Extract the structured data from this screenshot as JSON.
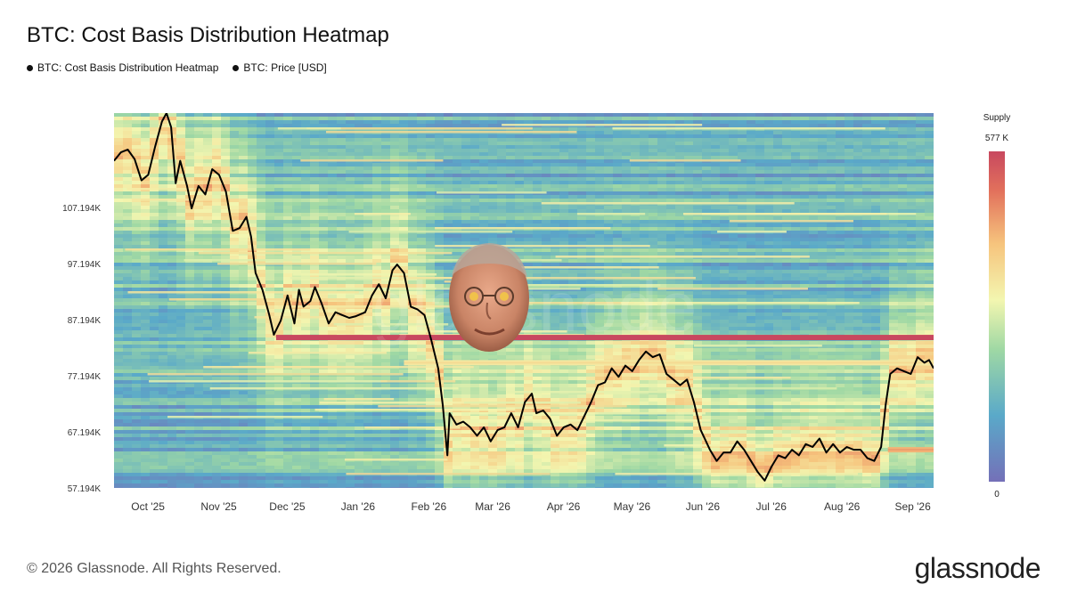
{
  "title": "BTC: Cost Basis Distribution Heatmap",
  "legend": [
    {
      "label": "BTC: Cost Basis Distribution Heatmap"
    },
    {
      "label": "BTC: Price [USD]"
    }
  ],
  "footer": {
    "copyright": "© 2026 Glassnode. All Rights Reserved.",
    "logo": "glassnode"
  },
  "colorbar": {
    "title": "Supply",
    "max_label": "577 K",
    "min_label": "0",
    "colors": [
      "#7470b8",
      "#5aa9c9",
      "#9fd8a4",
      "#f3f6b0",
      "#f6c47d",
      "#e2715c",
      "#c8485f"
    ]
  },
  "watermark": "glassnode",
  "chart_data": {
    "type": "heatmap",
    "title": "BTC: Cost Basis Distribution Heatmap",
    "x_ticks": [
      "Oct '25",
      "Nov '25",
      "Dec '25",
      "Jan '26",
      "Feb '26",
      "Mar '26",
      "Apr '26",
      "May '26",
      "Jun '26",
      "Jul '26",
      "Aug '26",
      "Sep '26"
    ],
    "y_ticks": [
      "107.194K",
      "97.194K",
      "87.194K",
      "77.194K",
      "67.194K",
      "57.194K"
    ],
    "y_tick_values": [
      107194,
      97194,
      87194,
      77194,
      67194,
      57194
    ],
    "ylim": [
      57194,
      124000
    ],
    "xlim": [
      "2025-09-13",
      "2026-09-07"
    ],
    "hot_bands": [
      {
        "price": 84000,
        "start": "2025-11-23",
        "end": "2026-09-07",
        "intensity": 1.0
      },
      {
        "price": 79500,
        "start": "2026-01-18",
        "end": "2026-09-07",
        "intensity": 0.55
      },
      {
        "price": 64000,
        "start": "2026-08-18",
        "end": "2026-09-07",
        "intensity": 0.7
      }
    ],
    "series": [
      {
        "name": "BTC: Price [USD]",
        "points": [
          [
            "2025-09-13",
            115500
          ],
          [
            "2025-09-16",
            117000
          ],
          [
            "2025-09-19",
            117500
          ],
          [
            "2025-09-22",
            115800
          ],
          [
            "2025-09-25",
            112000
          ],
          [
            "2025-09-28",
            113000
          ],
          [
            "2025-10-01",
            118000
          ],
          [
            "2025-10-04",
            122500
          ],
          [
            "2025-10-06",
            124000
          ],
          [
            "2025-10-08",
            121500
          ],
          [
            "2025-10-10",
            111500
          ],
          [
            "2025-10-12",
            115500
          ],
          [
            "2025-10-15",
            111000
          ],
          [
            "2025-10-17",
            107000
          ],
          [
            "2025-10-20",
            111000
          ],
          [
            "2025-10-23",
            109500
          ],
          [
            "2025-10-26",
            114000
          ],
          [
            "2025-10-29",
            113000
          ],
          [
            "2025-11-01",
            110000
          ],
          [
            "2025-11-04",
            103000
          ],
          [
            "2025-11-07",
            103500
          ],
          [
            "2025-11-10",
            105500
          ],
          [
            "2025-11-12",
            102000
          ],
          [
            "2025-11-14",
            95500
          ],
          [
            "2025-11-17",
            92500
          ],
          [
            "2025-11-20",
            88000
          ],
          [
            "2025-11-22",
            84500
          ],
          [
            "2025-11-25",
            87000
          ],
          [
            "2025-11-28",
            91500
          ],
          [
            "2025-12-01",
            86500
          ],
          [
            "2025-12-03",
            92500
          ],
          [
            "2025-12-05",
            89500
          ],
          [
            "2025-12-08",
            90500
          ],
          [
            "2025-12-10",
            93000
          ],
          [
            "2025-12-13",
            90000
          ],
          [
            "2025-12-16",
            86500
          ],
          [
            "2025-12-19",
            88500
          ],
          [
            "2025-12-22",
            88000
          ],
          [
            "2025-12-25",
            87500
          ],
          [
            "2025-12-28",
            87800
          ],
          [
            "2026-01-01",
            88500
          ],
          [
            "2026-01-04",
            91500
          ],
          [
            "2026-01-07",
            93500
          ],
          [
            "2026-01-10",
            91000
          ],
          [
            "2026-01-13",
            96000
          ],
          [
            "2026-01-15",
            97000
          ],
          [
            "2026-01-18",
            95500
          ],
          [
            "2026-01-21",
            89500
          ],
          [
            "2026-01-24",
            89000
          ],
          [
            "2026-01-27",
            88000
          ],
          [
            "2026-01-30",
            83500
          ],
          [
            "2026-02-02",
            78500
          ],
          [
            "2026-02-04",
            72000
          ],
          [
            "2026-02-06",
            63000
          ],
          [
            "2026-02-07",
            70500
          ],
          [
            "2026-02-10",
            68500
          ],
          [
            "2026-02-13",
            69000
          ],
          [
            "2026-02-16",
            68000
          ],
          [
            "2026-02-19",
            66500
          ],
          [
            "2026-02-22",
            68000
          ],
          [
            "2026-02-25",
            65500
          ],
          [
            "2026-02-28",
            67500
          ],
          [
            "2026-03-03",
            68000
          ],
          [
            "2026-03-06",
            70500
          ],
          [
            "2026-03-09",
            68000
          ],
          [
            "2026-03-12",
            72500
          ],
          [
            "2026-03-15",
            74000
          ],
          [
            "2026-03-17",
            70500
          ],
          [
            "2026-03-20",
            71000
          ],
          [
            "2026-03-23",
            69500
          ],
          [
            "2026-03-26",
            66500
          ],
          [
            "2026-03-29",
            68000
          ],
          [
            "2026-04-01",
            68500
          ],
          [
            "2026-04-04",
            67500
          ],
          [
            "2026-04-07",
            70000
          ],
          [
            "2026-04-10",
            72500
          ],
          [
            "2026-04-13",
            75500
          ],
          [
            "2026-04-16",
            76000
          ],
          [
            "2026-04-19",
            78500
          ],
          [
            "2026-04-22",
            77000
          ],
          [
            "2026-04-25",
            79000
          ],
          [
            "2026-04-28",
            78000
          ],
          [
            "2026-05-01",
            80000
          ],
          [
            "2026-05-04",
            81500
          ],
          [
            "2026-05-07",
            80500
          ],
          [
            "2026-05-10",
            81000
          ],
          [
            "2026-05-13",
            77500
          ],
          [
            "2026-05-16",
            76500
          ],
          [
            "2026-05-19",
            75500
          ],
          [
            "2026-05-22",
            76500
          ],
          [
            "2026-05-25",
            72500
          ],
          [
            "2026-05-28",
            67500
          ],
          [
            "2026-06-01",
            64000
          ],
          [
            "2026-06-04",
            62000
          ],
          [
            "2026-06-07",
            63500
          ],
          [
            "2026-06-10",
            63500
          ],
          [
            "2026-06-13",
            65500
          ],
          [
            "2026-06-16",
            64000
          ],
          [
            "2026-06-19",
            62000
          ],
          [
            "2026-06-22",
            60000
          ],
          [
            "2026-06-25",
            58500
          ],
          [
            "2026-06-28",
            61000
          ],
          [
            "2026-07-01",
            63000
          ],
          [
            "2026-07-04",
            62500
          ],
          [
            "2026-07-07",
            64000
          ],
          [
            "2026-07-10",
            63000
          ],
          [
            "2026-07-13",
            65000
          ],
          [
            "2026-07-16",
            64500
          ],
          [
            "2026-07-19",
            66000
          ],
          [
            "2026-07-22",
            63500
          ],
          [
            "2026-07-25",
            65000
          ],
          [
            "2026-07-28",
            63500
          ],
          [
            "2026-07-31",
            64500
          ],
          [
            "2026-08-03",
            64000
          ],
          [
            "2026-08-06",
            64000
          ],
          [
            "2026-08-09",
            62500
          ],
          [
            "2026-08-12",
            62000
          ],
          [
            "2026-08-15",
            64500
          ],
          [
            "2026-08-17",
            72000
          ],
          [
            "2026-08-19",
            77500
          ],
          [
            "2026-08-22",
            78500
          ],
          [
            "2026-08-25",
            78000
          ],
          [
            "2026-08-28",
            77500
          ],
          [
            "2026-08-31",
            80500
          ],
          [
            "2026-09-03",
            79500
          ],
          [
            "2026-09-05",
            80000
          ],
          [
            "2026-09-07",
            78500
          ]
        ]
      }
    ]
  }
}
